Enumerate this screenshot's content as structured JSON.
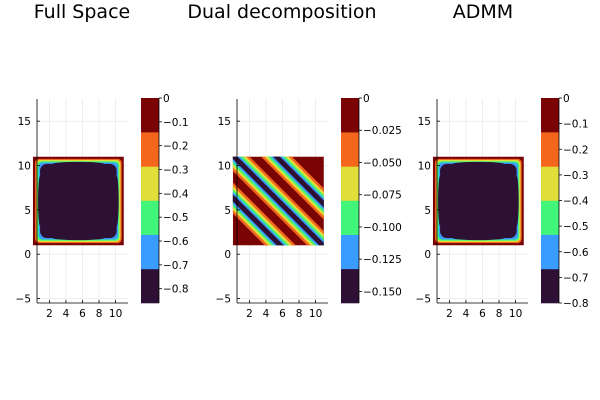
{
  "chart_data": [
    {
      "type": "heatmap",
      "title": "Full Space",
      "pattern": "square-frame",
      "x_ticks": [
        2,
        4,
        6,
        8,
        10
      ],
      "y_ticks": [
        -5,
        0,
        5,
        10,
        15
      ],
      "xlim": [
        0.5,
        11.5
      ],
      "ylim": [
        -5.5,
        17.5
      ],
      "data_extent": {
        "x": [
          0,
          11
        ],
        "y": [
          1,
          11
        ]
      },
      "grid": true,
      "colorbar": {
        "ticks": [
          "0",
          "−0.1",
          "−0.2",
          "−0.3",
          "−0.4",
          "−0.5",
          "−0.6",
          "−0.7",
          "−0.8"
        ],
        "tick_values": [
          0,
          -0.1,
          -0.2,
          -0.3,
          -0.4,
          -0.5,
          -0.6,
          -0.7,
          -0.8
        ],
        "range": [
          -0.86,
          0
        ],
        "levels": [
          {
            "color": "#2f1035",
            "range": [
              -0.86,
              -0.717
            ]
          },
          {
            "color": "#3a9cff",
            "range": [
              -0.717,
              -0.573
            ]
          },
          {
            "color": "#40f57a",
            "range": [
              -0.573,
              -0.43
            ]
          },
          {
            "color": "#e0de3a",
            "range": [
              -0.43,
              -0.287
            ]
          },
          {
            "color": "#f5661d",
            "range": [
              -0.287,
              -0.143
            ]
          },
          {
            "color": "#7a0403",
            "range": [
              -0.143,
              0
            ]
          }
        ]
      }
    },
    {
      "type": "heatmap",
      "title": "Dual decomposition",
      "pattern": "diagonal-stripes",
      "x_ticks": [
        2,
        4,
        6,
        8,
        10
      ],
      "y_ticks": [
        -5,
        0,
        5,
        10,
        15
      ],
      "xlim": [
        0.5,
        11.5
      ],
      "ylim": [
        -5.5,
        17.5
      ],
      "data_extent": {
        "x": [
          0,
          11
        ],
        "y": [
          1,
          11
        ]
      },
      "grid": true,
      "colorbar": {
        "ticks": [
          "0",
          "−0.025",
          "−0.050",
          "−0.075",
          "−0.100",
          "−0.125",
          "−0.150"
        ],
        "tick_values": [
          0,
          -0.025,
          -0.05,
          -0.075,
          -0.1,
          -0.125,
          -0.15
        ],
        "range": [
          -0.159,
          0
        ],
        "levels": [
          {
            "color": "#2f1035",
            "range": [
              -0.159,
              -0.1325
            ]
          },
          {
            "color": "#3a9cff",
            "range": [
              -0.1325,
              -0.106
            ]
          },
          {
            "color": "#40f57a",
            "range": [
              -0.106,
              -0.0795
            ]
          },
          {
            "color": "#e0de3a",
            "range": [
              -0.0795,
              -0.053
            ]
          },
          {
            "color": "#f5661d",
            "range": [
              -0.053,
              -0.0265
            ]
          },
          {
            "color": "#7a0403",
            "range": [
              -0.0265,
              0
            ]
          }
        ]
      }
    },
    {
      "type": "heatmap",
      "title": "ADMM",
      "pattern": "square-frame",
      "x_ticks": [
        2,
        4,
        6,
        8,
        10
      ],
      "y_ticks": [
        -5,
        0,
        5,
        10,
        15
      ],
      "xlim": [
        0.5,
        11.5
      ],
      "ylim": [
        -5.5,
        17.5
      ],
      "data_extent": {
        "x": [
          0,
          11
        ],
        "y": [
          1,
          11
        ]
      },
      "grid": true,
      "colorbar": {
        "ticks": [
          "0",
          "−0.1",
          "−0.2",
          "−0.3",
          "−0.4",
          "−0.5",
          "−0.6",
          "−0.7",
          "−0.8"
        ],
        "tick_values": [
          0,
          -0.1,
          -0.2,
          -0.3,
          -0.4,
          -0.5,
          -0.6,
          -0.7,
          -0.8
        ],
        "range": [
          -0.8,
          0
        ],
        "levels": [
          {
            "color": "#2f1035",
            "range": [
              -0.8,
              -0.667
            ]
          },
          {
            "color": "#3a9cff",
            "range": [
              -0.667,
              -0.533
            ]
          },
          {
            "color": "#40f57a",
            "range": [
              -0.533,
              -0.4
            ]
          },
          {
            "color": "#e0de3a",
            "range": [
              -0.4,
              -0.267
            ]
          },
          {
            "color": "#f5661d",
            "range": [
              -0.267,
              -0.133
            ]
          },
          {
            "color": "#7a0403",
            "range": [
              -0.133,
              0
            ]
          }
        ]
      }
    }
  ]
}
